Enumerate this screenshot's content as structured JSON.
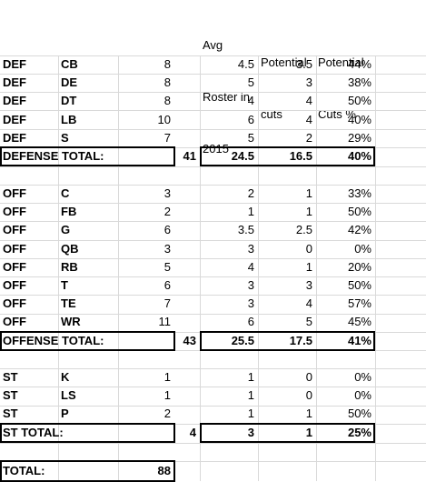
{
  "headers": {
    "avg_line1": "Avg",
    "avg_line2": "Roster in",
    "avg_line3": "2015",
    "cuts_line1": "Potential",
    "cuts_line2": "cuts",
    "pct_line1": "Potential",
    "pct_line2": "Cuts %"
  },
  "defense": {
    "rows": [
      {
        "unit": "DEF",
        "pos": "CB",
        "count": "8",
        "avg": "4.5",
        "cuts": "3.5",
        "pct": "44%"
      },
      {
        "unit": "DEF",
        "pos": "DE",
        "count": "8",
        "avg": "5",
        "cuts": "3",
        "pct": "38%"
      },
      {
        "unit": "DEF",
        "pos": "DT",
        "count": "8",
        "avg": "4",
        "cuts": "4",
        "pct": "50%"
      },
      {
        "unit": "DEF",
        "pos": "LB",
        "count": "10",
        "avg": "6",
        "cuts": "4",
        "pct": "40%"
      },
      {
        "unit": "DEF",
        "pos": "S",
        "count": "7",
        "avg": "5",
        "cuts": "2",
        "pct": "29%"
      }
    ],
    "total": {
      "label": "DEFENSE TOTAL:",
      "count": "41",
      "avg": "24.5",
      "cuts": "16.5",
      "pct": "40%"
    }
  },
  "offense": {
    "rows": [
      {
        "unit": "OFF",
        "pos": "C",
        "count": "3",
        "avg": "2",
        "cuts": "1",
        "pct": "33%"
      },
      {
        "unit": "OFF",
        "pos": "FB",
        "count": "2",
        "avg": "1",
        "cuts": "1",
        "pct": "50%"
      },
      {
        "unit": "OFF",
        "pos": "G",
        "count": "6",
        "avg": "3.5",
        "cuts": "2.5",
        "pct": "42%"
      },
      {
        "unit": "OFF",
        "pos": "QB",
        "count": "3",
        "avg": "3",
        "cuts": "0",
        "pct": "0%"
      },
      {
        "unit": "OFF",
        "pos": "RB",
        "count": "5",
        "avg": "4",
        "cuts": "1",
        "pct": "20%"
      },
      {
        "unit": "OFF",
        "pos": "T",
        "count": "6",
        "avg": "3",
        "cuts": "3",
        "pct": "50%"
      },
      {
        "unit": "OFF",
        "pos": "TE",
        "count": "7",
        "avg": "3",
        "cuts": "4",
        "pct": "57%"
      },
      {
        "unit": "OFF",
        "pos": "WR",
        "count": "11",
        "avg": "6",
        "cuts": "5",
        "pct": "45%"
      }
    ],
    "total": {
      "label": "OFFENSE TOTAL:",
      "count": "43",
      "avg": "25.5",
      "cuts": "17.5",
      "pct": "41%"
    }
  },
  "special_teams": {
    "rows": [
      {
        "unit": "ST",
        "pos": "K",
        "count": "1",
        "avg": "1",
        "cuts": "0",
        "pct": "0%"
      },
      {
        "unit": "ST",
        "pos": "LS",
        "count": "1",
        "avg": "1",
        "cuts": "0",
        "pct": "0%"
      },
      {
        "unit": "ST",
        "pos": "P",
        "count": "2",
        "avg": "1",
        "cuts": "1",
        "pct": "50%"
      }
    ],
    "total": {
      "label": "ST TOTAL:",
      "count": "4",
      "avg": "3",
      "cuts": "1",
      "pct": "25%"
    }
  },
  "grand_total": {
    "label": "TOTAL:",
    "count": "88"
  }
}
